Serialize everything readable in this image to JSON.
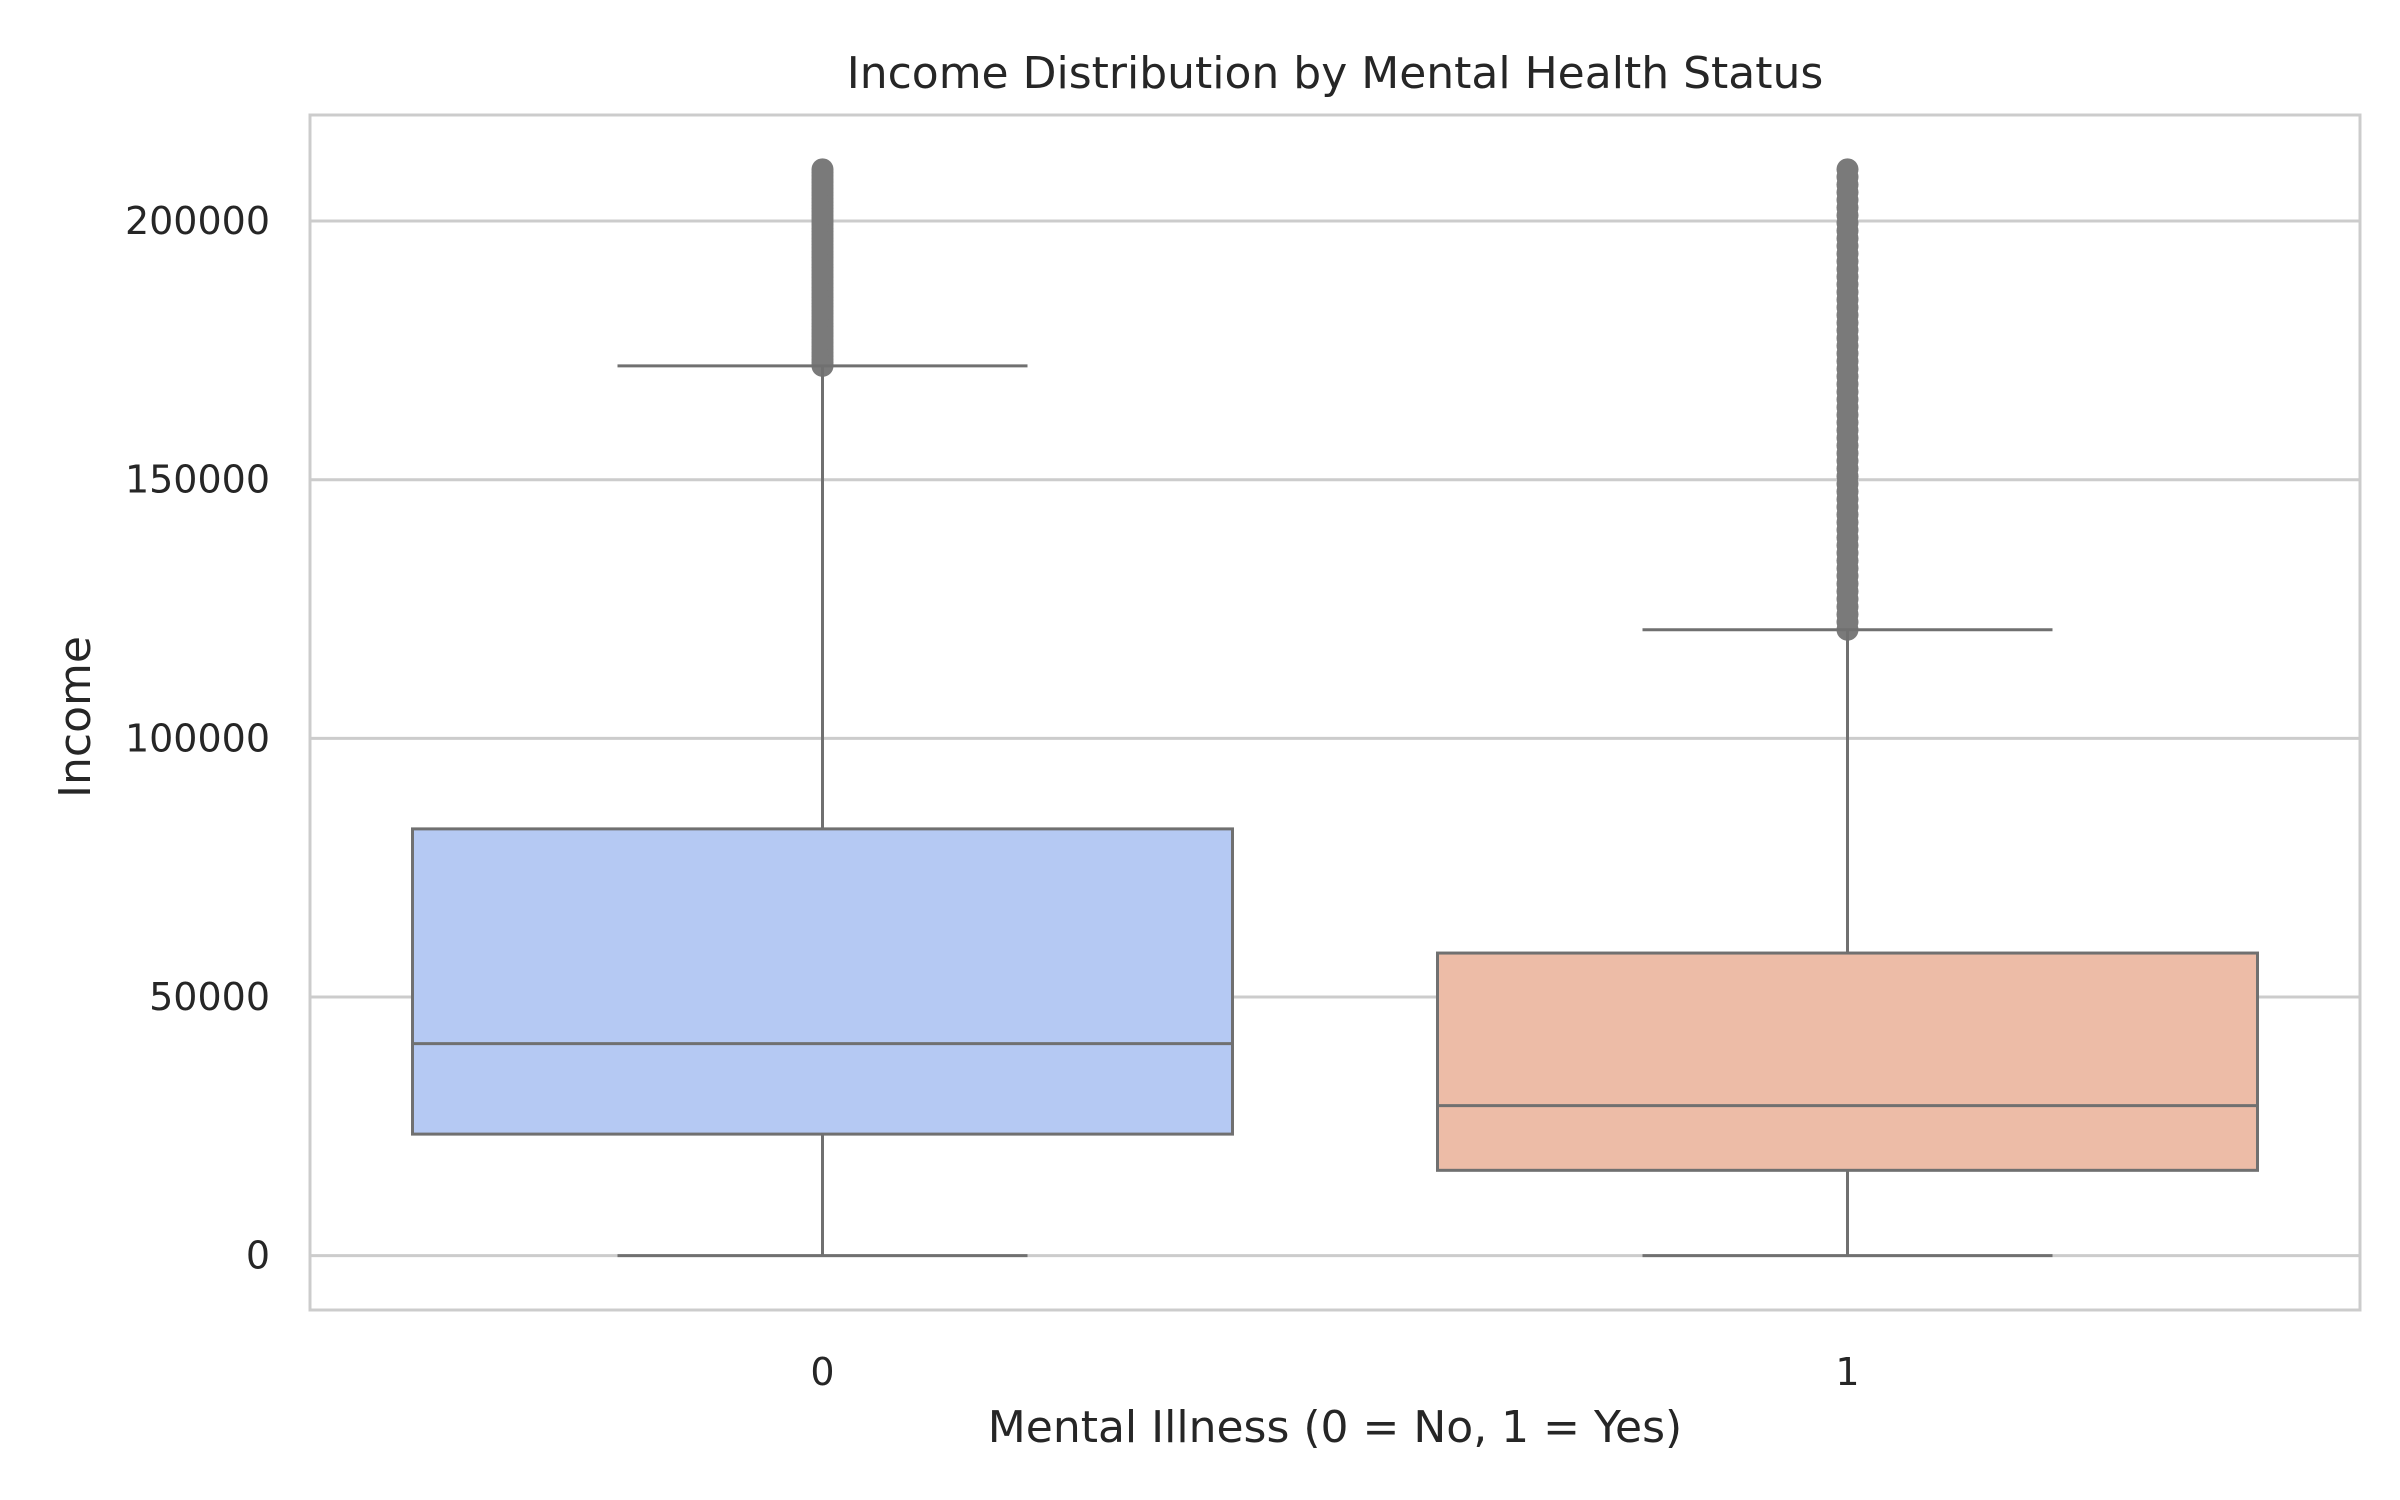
{
  "chart_data": {
    "type": "box",
    "title": "Income Distribution by Mental Health Status",
    "xlabel": "Mental Illness (0 = No, 1 = Yes)",
    "ylabel": "Income",
    "categories": [
      "0",
      "1"
    ],
    "ylim": [
      -10500,
      220500
    ],
    "yticks": [
      0,
      50000,
      100000,
      150000,
      200000
    ],
    "yticklabels": [
      "0",
      "50000",
      "100000",
      "150000",
      "200000"
    ],
    "grid": true,
    "colors": {
      "box_fills": [
        "#b5c9f3",
        "#edbca7"
      ],
      "line": "#707070",
      "outlier": "#7a7a7a",
      "grid": "#cccccc",
      "frame": "#cccccc",
      "text": "#262626"
    },
    "boxes": [
      {
        "category": "0",
        "whislo": 0,
        "q1": 23500,
        "median": 41000,
        "q3": 82500,
        "whishi": 172000,
        "outlier_range": [
          172000,
          210000
        ]
      },
      {
        "category": "1",
        "whislo": 0,
        "q1": 16500,
        "median": 29000,
        "q3": 58500,
        "whishi": 121000,
        "outlier_range": [
          121000,
          210000
        ]
      }
    ]
  }
}
